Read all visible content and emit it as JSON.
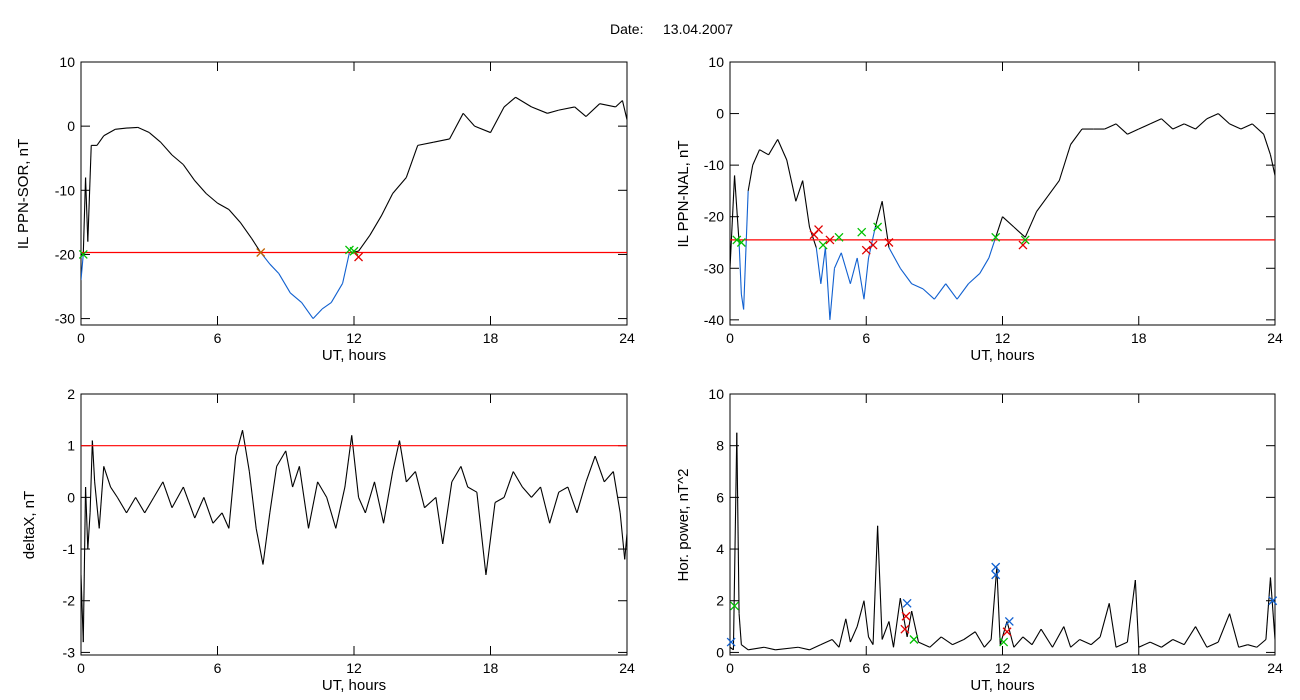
{
  "header": {
    "date_label": "Date:",
    "date_value": "13.04.2007"
  },
  "colors": {
    "line": "#000000",
    "threshold": "#ff0000",
    "below": "#1060d0",
    "marker_red": "#e00000",
    "marker_green": "#00c000",
    "marker_blue": "#1060d0",
    "marker_orange": "#c06000"
  },
  "chart_data": [
    {
      "type": "line",
      "xlabel": "UT, hours",
      "ylabel": "IL PPN-SOR, nT",
      "xlim": [
        0,
        24
      ],
      "ylim": [
        -31,
        10
      ],
      "xticks": [
        0,
        6,
        12,
        18,
        24
      ],
      "yticks": [
        -30,
        -20,
        -10,
        0,
        10
      ],
      "threshold": -19.7,
      "points": [
        [
          0,
          -24
        ],
        [
          0.1,
          -20
        ],
        [
          0.2,
          -8
        ],
        [
          0.3,
          -18
        ],
        [
          0.45,
          -3
        ],
        [
          0.7,
          -3
        ],
        [
          1,
          -1.5
        ],
        [
          1.5,
          -0.5
        ],
        [
          2,
          -0.3
        ],
        [
          2.5,
          -0.2
        ],
        [
          3,
          -1
        ],
        [
          3.5,
          -2.5
        ],
        [
          4,
          -4.5
        ],
        [
          4.5,
          -6
        ],
        [
          5,
          -8.5
        ],
        [
          5.5,
          -10.5
        ],
        [
          6,
          -12
        ],
        [
          6.5,
          -13
        ],
        [
          7,
          -15
        ],
        [
          7.5,
          -17.5
        ],
        [
          7.9,
          -19.7
        ],
        [
          8.3,
          -21.5
        ],
        [
          8.7,
          -23
        ],
        [
          9.2,
          -26
        ],
        [
          9.7,
          -27.5
        ],
        [
          10.2,
          -30
        ],
        [
          10.6,
          -28.5
        ],
        [
          11,
          -27.5
        ],
        [
          11.5,
          -24.5
        ],
        [
          11.8,
          -19.7
        ],
        [
          12.2,
          -19.5
        ],
        [
          12.7,
          -17
        ],
        [
          13.2,
          -14
        ],
        [
          13.7,
          -10.5
        ],
        [
          14.3,
          -8
        ],
        [
          14.8,
          -3
        ],
        [
          15.5,
          -2.5
        ],
        [
          16.2,
          -2
        ],
        [
          16.8,
          2
        ],
        [
          17.3,
          0
        ],
        [
          18,
          -1
        ],
        [
          18.6,
          3
        ],
        [
          19.1,
          4.5
        ],
        [
          19.8,
          3
        ],
        [
          20.5,
          2
        ],
        [
          21,
          2.5
        ],
        [
          21.7,
          3
        ],
        [
          22.2,
          1.5
        ],
        [
          22.8,
          3.5
        ],
        [
          23.5,
          3
        ],
        [
          23.8,
          4
        ],
        [
          24,
          1
        ]
      ],
      "series_colors": {
        "above": "#000000",
        "below": "#1060d0"
      },
      "markers": [
        {
          "x": 7.9,
          "y": -19.7,
          "color": "#c06000"
        },
        {
          "x": 11.8,
          "y": -19.3,
          "color": "#00c000"
        },
        {
          "x": 12.0,
          "y": -19.5,
          "color": "#00c000"
        },
        {
          "x": 12.2,
          "y": -20.4,
          "color": "#e00000"
        },
        {
          "x": 0.1,
          "y": -20.0,
          "color": "#00c000"
        }
      ]
    },
    {
      "type": "line",
      "xlabel": "UT, hours",
      "ylabel": "IL PPN-NAL, nT",
      "xlim": [
        0,
        24
      ],
      "ylim": [
        -41,
        10
      ],
      "xticks": [
        0,
        6,
        12,
        18,
        24
      ],
      "yticks": [
        -40,
        -30,
        -20,
        -10,
        0,
        10
      ],
      "threshold": -24.5,
      "points": [
        [
          0,
          -30
        ],
        [
          0.2,
          -12
        ],
        [
          0.4,
          -25
        ],
        [
          0.5,
          -35
        ],
        [
          0.6,
          -38
        ],
        [
          0.8,
          -15
        ],
        [
          1,
          -10
        ],
        [
          1.3,
          -7
        ],
        [
          1.7,
          -8
        ],
        [
          2.1,
          -5
        ],
        [
          2.5,
          -9
        ],
        [
          2.9,
          -17
        ],
        [
          3.2,
          -13
        ],
        [
          3.5,
          -22
        ],
        [
          3.8,
          -26
        ],
        [
          4,
          -33
        ],
        [
          4.2,
          -26
        ],
        [
          4.4,
          -40
        ],
        [
          4.6,
          -30
        ],
        [
          4.9,
          -27
        ],
        [
          5.3,
          -33
        ],
        [
          5.6,
          -28
        ],
        [
          5.9,
          -36
        ],
        [
          6.1,
          -28
        ],
        [
          6.4,
          -22
        ],
        [
          6.7,
          -17
        ],
        [
          7,
          -26
        ],
        [
          7.5,
          -30
        ],
        [
          8,
          -33
        ],
        [
          8.5,
          -34
        ],
        [
          9,
          -36
        ],
        [
          9.5,
          -33
        ],
        [
          10,
          -36
        ],
        [
          10.5,
          -33
        ],
        [
          11,
          -31
        ],
        [
          11.4,
          -28
        ],
        [
          11.7,
          -24
        ],
        [
          12,
          -20
        ],
        [
          12.5,
          -22
        ],
        [
          13,
          -24
        ],
        [
          13.5,
          -19
        ],
        [
          14,
          -16
        ],
        [
          14.5,
          -13
        ],
        [
          15,
          -6
        ],
        [
          15.5,
          -3
        ],
        [
          16,
          -3
        ],
        [
          16.5,
          -3
        ],
        [
          17,
          -2
        ],
        [
          17.5,
          -4
        ],
        [
          18,
          -3
        ],
        [
          18.5,
          -2
        ],
        [
          19,
          -1
        ],
        [
          19.5,
          -3
        ],
        [
          20,
          -2
        ],
        [
          20.5,
          -3
        ],
        [
          21,
          -1
        ],
        [
          21.5,
          0
        ],
        [
          22,
          -2
        ],
        [
          22.5,
          -3
        ],
        [
          23,
          -2
        ],
        [
          23.5,
          -4
        ],
        [
          23.8,
          -8
        ],
        [
          24,
          -12
        ]
      ],
      "series_colors": {
        "above": "#000000",
        "below": "#1060d0"
      },
      "markers": [
        {
          "x": 0.3,
          "y": -24.5,
          "color": "#00c000"
        },
        {
          "x": 0.5,
          "y": -25,
          "color": "#00c000"
        },
        {
          "x": 3.7,
          "y": -23.5,
          "color": "#e00000"
        },
        {
          "x": 3.9,
          "y": -22.5,
          "color": "#e00000"
        },
        {
          "x": 4.1,
          "y": -25.5,
          "color": "#00c000"
        },
        {
          "x": 4.4,
          "y": -24.5,
          "color": "#e00000"
        },
        {
          "x": 4.8,
          "y": -24,
          "color": "#00c000"
        },
        {
          "x": 5.8,
          "y": -23,
          "color": "#00c000"
        },
        {
          "x": 6.0,
          "y": -26.5,
          "color": "#e00000"
        },
        {
          "x": 6.3,
          "y": -25.5,
          "color": "#e00000"
        },
        {
          "x": 6.5,
          "y": -22,
          "color": "#00c000"
        },
        {
          "x": 7.0,
          "y": -25,
          "color": "#e00000"
        },
        {
          "x": 11.7,
          "y": -24,
          "color": "#00c000"
        },
        {
          "x": 12.9,
          "y": -25.5,
          "color": "#e00000"
        },
        {
          "x": 13.0,
          "y": -24.5,
          "color": "#00c000"
        }
      ]
    },
    {
      "type": "line",
      "xlabel": "UT, hours",
      "ylabel": "deltaX, nT",
      "xlim": [
        0,
        24
      ],
      "ylim": [
        -3.05,
        2
      ],
      "xticks": [
        0,
        6,
        12,
        18,
        24
      ],
      "yticks": [
        -3,
        -2,
        -1,
        0,
        1,
        2
      ],
      "threshold": 1.0,
      "points": [
        [
          0,
          -1.5
        ],
        [
          0.1,
          -2.8
        ],
        [
          0.2,
          0.2
        ],
        [
          0.3,
          -1
        ],
        [
          0.4,
          -0.3
        ],
        [
          0.5,
          1.1
        ],
        [
          0.6,
          0.3
        ],
        [
          0.8,
          -0.6
        ],
        [
          1,
          0.6
        ],
        [
          1.3,
          0.2
        ],
        [
          1.6,
          0
        ],
        [
          2,
          -0.3
        ],
        [
          2.4,
          0
        ],
        [
          2.8,
          -0.3
        ],
        [
          3.2,
          0
        ],
        [
          3.6,
          0.3
        ],
        [
          4,
          -0.2
        ],
        [
          4.5,
          0.2
        ],
        [
          5,
          -0.4
        ],
        [
          5.4,
          0
        ],
        [
          5.8,
          -0.5
        ],
        [
          6.2,
          -0.3
        ],
        [
          6.5,
          -0.6
        ],
        [
          6.8,
          0.8
        ],
        [
          7.1,
          1.3
        ],
        [
          7.4,
          0.5
        ],
        [
          7.7,
          -0.6
        ],
        [
          8,
          -1.3
        ],
        [
          8.3,
          -0.3
        ],
        [
          8.6,
          0.6
        ],
        [
          9,
          0.9
        ],
        [
          9.3,
          0.2
        ],
        [
          9.6,
          0.6
        ],
        [
          10,
          -0.6
        ],
        [
          10.4,
          0.3
        ],
        [
          10.8,
          0
        ],
        [
          11.2,
          -0.6
        ],
        [
          11.6,
          0.2
        ],
        [
          11.9,
          1.2
        ],
        [
          12.2,
          0
        ],
        [
          12.5,
          -0.3
        ],
        [
          12.9,
          0.3
        ],
        [
          13.3,
          -0.5
        ],
        [
          13.7,
          0.5
        ],
        [
          14,
          1.1
        ],
        [
          14.3,
          0.3
        ],
        [
          14.7,
          0.5
        ],
        [
          15.1,
          -0.2
        ],
        [
          15.6,
          0
        ],
        [
          15.9,
          -0.9
        ],
        [
          16.3,
          0.3
        ],
        [
          16.7,
          0.6
        ],
        [
          17,
          0.2
        ],
        [
          17.4,
          0.1
        ],
        [
          17.8,
          -1.5
        ],
        [
          18.2,
          -0.1
        ],
        [
          18.6,
          0
        ],
        [
          19,
          0.5
        ],
        [
          19.4,
          0.2
        ],
        [
          19.8,
          0
        ],
        [
          20.2,
          0.2
        ],
        [
          20.6,
          -0.5
        ],
        [
          21,
          0.1
        ],
        [
          21.4,
          0.2
        ],
        [
          21.8,
          -0.3
        ],
        [
          22.2,
          0.3
        ],
        [
          22.6,
          0.8
        ],
        [
          23,
          0.3
        ],
        [
          23.4,
          0.5
        ],
        [
          23.7,
          -0.3
        ],
        [
          23.9,
          -1.2
        ],
        [
          24,
          -0.7
        ]
      ],
      "series_colors": {
        "above": "#000000",
        "below": "#000000"
      },
      "markers": []
    },
    {
      "type": "line",
      "xlabel": "UT, hours",
      "ylabel": "Hor. power, nT^2",
      "xlim": [
        0,
        24
      ],
      "ylim": [
        -0.1,
        10
      ],
      "xticks": [
        0,
        6,
        12,
        18,
        24
      ],
      "yticks": [
        0,
        2,
        4,
        6,
        8,
        10
      ],
      "threshold": null,
      "points": [
        [
          0,
          0.2
        ],
        [
          0.15,
          0.1
        ],
        [
          0.3,
          8.5
        ],
        [
          0.4,
          1.5
        ],
        [
          0.5,
          0.3
        ],
        [
          0.8,
          0.1
        ],
        [
          1.5,
          0.2
        ],
        [
          2,
          0.1
        ],
        [
          3,
          0.2
        ],
        [
          3.5,
          0.1
        ],
        [
          4,
          0.3
        ],
        [
          4.5,
          0.5
        ],
        [
          4.8,
          0.2
        ],
        [
          5.1,
          1.3
        ],
        [
          5.3,
          0.4
        ],
        [
          5.6,
          1
        ],
        [
          5.9,
          2
        ],
        [
          6.1,
          0.6
        ],
        [
          6.3,
          0.3
        ],
        [
          6.5,
          4.9
        ],
        [
          6.7,
          0.5
        ],
        [
          7,
          1.2
        ],
        [
          7.2,
          0.2
        ],
        [
          7.5,
          2.1
        ],
        [
          7.8,
          0.6
        ],
        [
          8,
          1.6
        ],
        [
          8.3,
          0.4
        ],
        [
          8.8,
          0.2
        ],
        [
          9.3,
          0.6
        ],
        [
          9.8,
          0.3
        ],
        [
          10.3,
          0.5
        ],
        [
          10.8,
          0.8
        ],
        [
          11.2,
          0.2
        ],
        [
          11.5,
          0.5
        ],
        [
          11.75,
          3.3
        ],
        [
          11.9,
          0.3
        ],
        [
          12.2,
          1.2
        ],
        [
          12.5,
          0.2
        ],
        [
          12.9,
          0.6
        ],
        [
          13.3,
          0.3
        ],
        [
          13.7,
          0.9
        ],
        [
          14.2,
          0.2
        ],
        [
          14.7,
          1
        ],
        [
          15,
          0.2
        ],
        [
          15.4,
          0.5
        ],
        [
          15.9,
          0.3
        ],
        [
          16.3,
          0.6
        ],
        [
          16.7,
          1.9
        ],
        [
          17,
          0.2
        ],
        [
          17.5,
          0.4
        ],
        [
          17.85,
          2.8
        ],
        [
          18,
          0.2
        ],
        [
          18.5,
          0.4
        ],
        [
          19,
          0.2
        ],
        [
          19.5,
          0.5
        ],
        [
          20,
          0.3
        ],
        [
          20.5,
          1
        ],
        [
          21,
          0.2
        ],
        [
          21.5,
          0.4
        ],
        [
          22,
          1.5
        ],
        [
          22.4,
          0.2
        ],
        [
          22.8,
          0.3
        ],
        [
          23.2,
          0.2
        ],
        [
          23.6,
          0.5
        ],
        [
          23.8,
          2.9
        ],
        [
          24,
          0.5
        ]
      ],
      "series_colors": {
        "above": "#000000",
        "below": "#000000"
      },
      "markers": [
        {
          "x": 0.05,
          "y": 0.4,
          "color": "#1060d0"
        },
        {
          "x": 0.2,
          "y": 1.8,
          "color": "#00c000"
        },
        {
          "x": 7.8,
          "y": 1.9,
          "color": "#1060d0"
        },
        {
          "x": 7.75,
          "y": 1.4,
          "color": "#e00000"
        },
        {
          "x": 7.7,
          "y": 0.9,
          "color": "#e00000"
        },
        {
          "x": 8.1,
          "y": 0.5,
          "color": "#00c000"
        },
        {
          "x": 11.7,
          "y": 3.3,
          "color": "#1060d0"
        },
        {
          "x": 11.7,
          "y": 3.0,
          "color": "#1060d0"
        },
        {
          "x": 12.05,
          "y": 0.4,
          "color": "#00c000"
        },
        {
          "x": 12.2,
          "y": 0.8,
          "color": "#e00000"
        },
        {
          "x": 12.3,
          "y": 1.2,
          "color": "#1060d0"
        },
        {
          "x": 23.9,
          "y": 2.0,
          "color": "#1060d0"
        }
      ]
    }
  ]
}
